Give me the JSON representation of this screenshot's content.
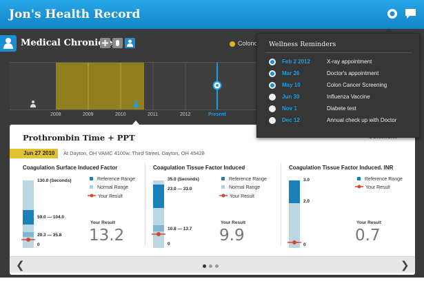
{
  "app": {
    "title": "Jon's Health Record"
  },
  "chronicles": {
    "title": "Medical Chronicles",
    "legend_label": "Colonos"
  },
  "timeline": {
    "years": [
      "2008",
      "2009",
      "2010",
      "2011",
      "2012",
      "Present"
    ],
    "highlight_color": "#8f7f1e"
  },
  "result": {
    "title": "Prothrombin Time + PPT",
    "date": "Jun 27 2010",
    "location": "At Dayton, OH VAMC 4100w. Third Street, Dayton, OH 45428",
    "comment_label": "Comment",
    "legend": {
      "reference": "Reference Range",
      "normal": "Normal Range",
      "your": "Your Result"
    },
    "result_label": "Your Result",
    "panels": [
      {
        "title": "Coagulation Surface Induced Factor",
        "ticks": [
          "130.0 (Seconds)",
          "59.0 — 104.0",
          "20.3 — 35.8",
          "0"
        ],
        "value": "13.2"
      },
      {
        "title": "Coagulation Tissue Factor Induced",
        "ticks": [
          "35.0 (Seconds)",
          "23.0 — 33.0",
          "10.8 — 13.7",
          "0"
        ],
        "value": "9.9"
      },
      {
        "title": "Coagulation Tissue Factor Induced. INR",
        "ticks": [
          "3.0",
          "2.0",
          "0"
        ],
        "value": "0.7"
      }
    ]
  },
  "reminders": {
    "title": "Wellness Reminders",
    "items": [
      {
        "date": "Feb 2 2012",
        "name": "X-ray appointment",
        "selected": true
      },
      {
        "date": "Mar 26",
        "name": "Doctor's appointment",
        "selected": true
      },
      {
        "date": "May 10",
        "name": "Colon Cancer Screening",
        "selected": true
      },
      {
        "date": "Jun 30",
        "name": "Influenza Vaccine",
        "selected": false
      },
      {
        "date": "Nov 1",
        "name": "Diabete test",
        "selected": false
      },
      {
        "date": "Dec 12",
        "name": "Annual check up with Doctor",
        "selected": false
      }
    ]
  },
  "colors": {
    "accent": "#1b8fd3",
    "reference": "#1b7fb8",
    "normal": "#a9cfe3",
    "result": "#d9472b",
    "highlight": "#e2c133"
  }
}
